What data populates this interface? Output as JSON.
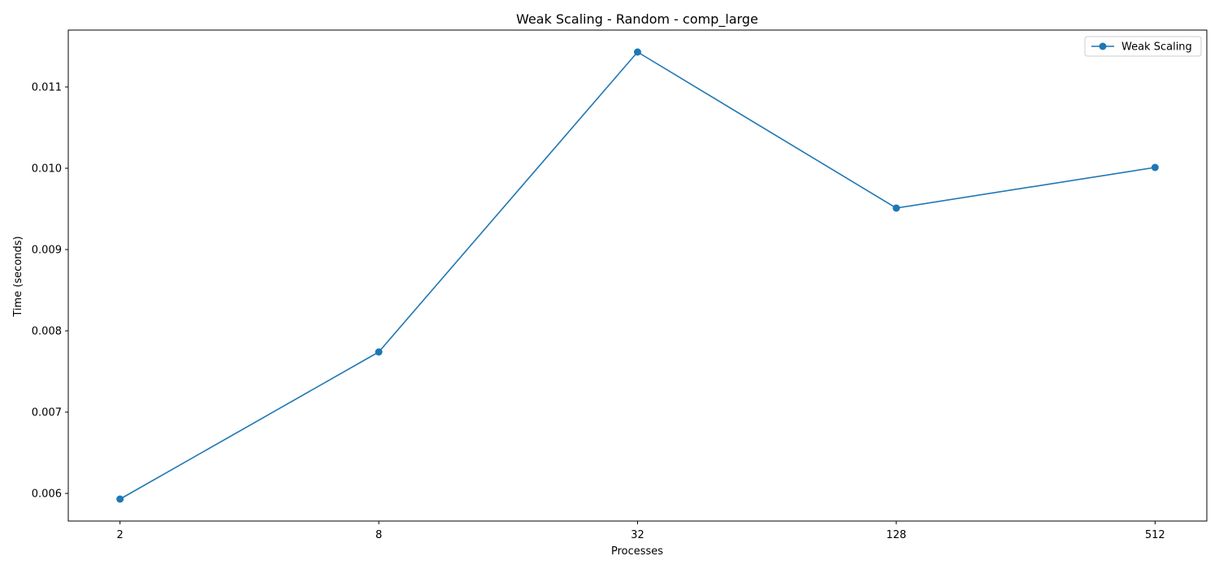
{
  "chart_data": {
    "type": "line",
    "title": "Weak Scaling - Random - comp_large",
    "xlabel": "Processes",
    "ylabel": "Time (seconds)",
    "x_scale": "log2",
    "categories": [
      "2",
      "8",
      "32",
      "128",
      "512"
    ],
    "x": [
      2,
      8,
      32,
      128,
      512
    ],
    "series": [
      {
        "name": "Weak Scaling",
        "color": "#1f77b4",
        "marker": "circle",
        "values": [
          0.00593,
          0.00774,
          0.01143,
          0.00951,
          0.01001
        ]
      }
    ],
    "ylim": [
      0.00566,
      0.0117
    ],
    "yticks": [
      0.006,
      0.007,
      0.008,
      0.009,
      0.01,
      0.011
    ],
    "ytick_labels": [
      "0.006",
      "0.007",
      "0.008",
      "0.009",
      "0.010",
      "0.011"
    ],
    "grid": false,
    "legend": {
      "position": "top-right"
    }
  }
}
